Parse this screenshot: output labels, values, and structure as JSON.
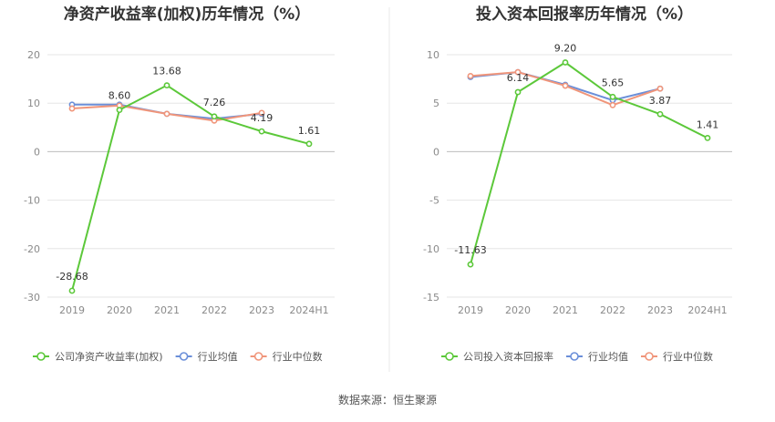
{
  "colors": {
    "company": "#5cc83a",
    "industry_avg": "#6b8fd9",
    "industry_median": "#f0957a",
    "grid": "#e6e6e6",
    "divider": "#e8e8e8"
  },
  "source": "数据来源：恒生聚源",
  "chart_data": [
    {
      "type": "line",
      "title": "净资产收益率(加权)历年情况（%）",
      "categories": [
        "2019",
        "2020",
        "2021",
        "2022",
        "2023",
        "2024H1"
      ],
      "ylim": [
        -30,
        20
      ],
      "yticks": [
        20,
        10,
        0,
        -10,
        -20,
        -30
      ],
      "grid": true,
      "legend_position": "bottom",
      "series": [
        {
          "name": "公司净资产收益率(加权)",
          "color_key": "company",
          "values": [
            -28.68,
            8.6,
            13.68,
            7.26,
            4.19,
            1.61
          ],
          "labels": [
            "-28.68",
            "8.60",
            "13.68",
            "7.26",
            "4.19",
            "1.61"
          ]
        },
        {
          "name": "行业均值",
          "color_key": "industry_avg",
          "values": [
            9.7,
            9.7,
            7.8,
            6.8,
            7.8,
            null
          ]
        },
        {
          "name": "行业中位数",
          "color_key": "industry_median",
          "values": [
            8.9,
            9.5,
            7.8,
            6.4,
            8.0,
            null
          ]
        }
      ]
    },
    {
      "type": "line",
      "title": "投入资本回报率历年情况（%）",
      "categories": [
        "2019",
        "2020",
        "2021",
        "2022",
        "2023",
        "2024H1"
      ],
      "ylim": [
        -15,
        10
      ],
      "yticks": [
        10,
        5,
        0,
        -5,
        -10,
        -15
      ],
      "grid": true,
      "legend_position": "bottom",
      "series": [
        {
          "name": "公司投入资本回报率",
          "color_key": "company",
          "values": [
            -11.63,
            6.14,
            9.2,
            5.65,
            3.87,
            1.41
          ],
          "labels": [
            "-11.63",
            "6.14",
            "9.20",
            "5.65",
            "3.87",
            "1.41"
          ]
        },
        {
          "name": "行业均值",
          "color_key": "industry_avg",
          "values": [
            7.7,
            8.2,
            6.9,
            5.3,
            6.5,
            null
          ]
        },
        {
          "name": "行业中位数",
          "color_key": "industry_median",
          "values": [
            7.8,
            8.2,
            6.8,
            4.8,
            6.5,
            null
          ]
        }
      ]
    }
  ]
}
